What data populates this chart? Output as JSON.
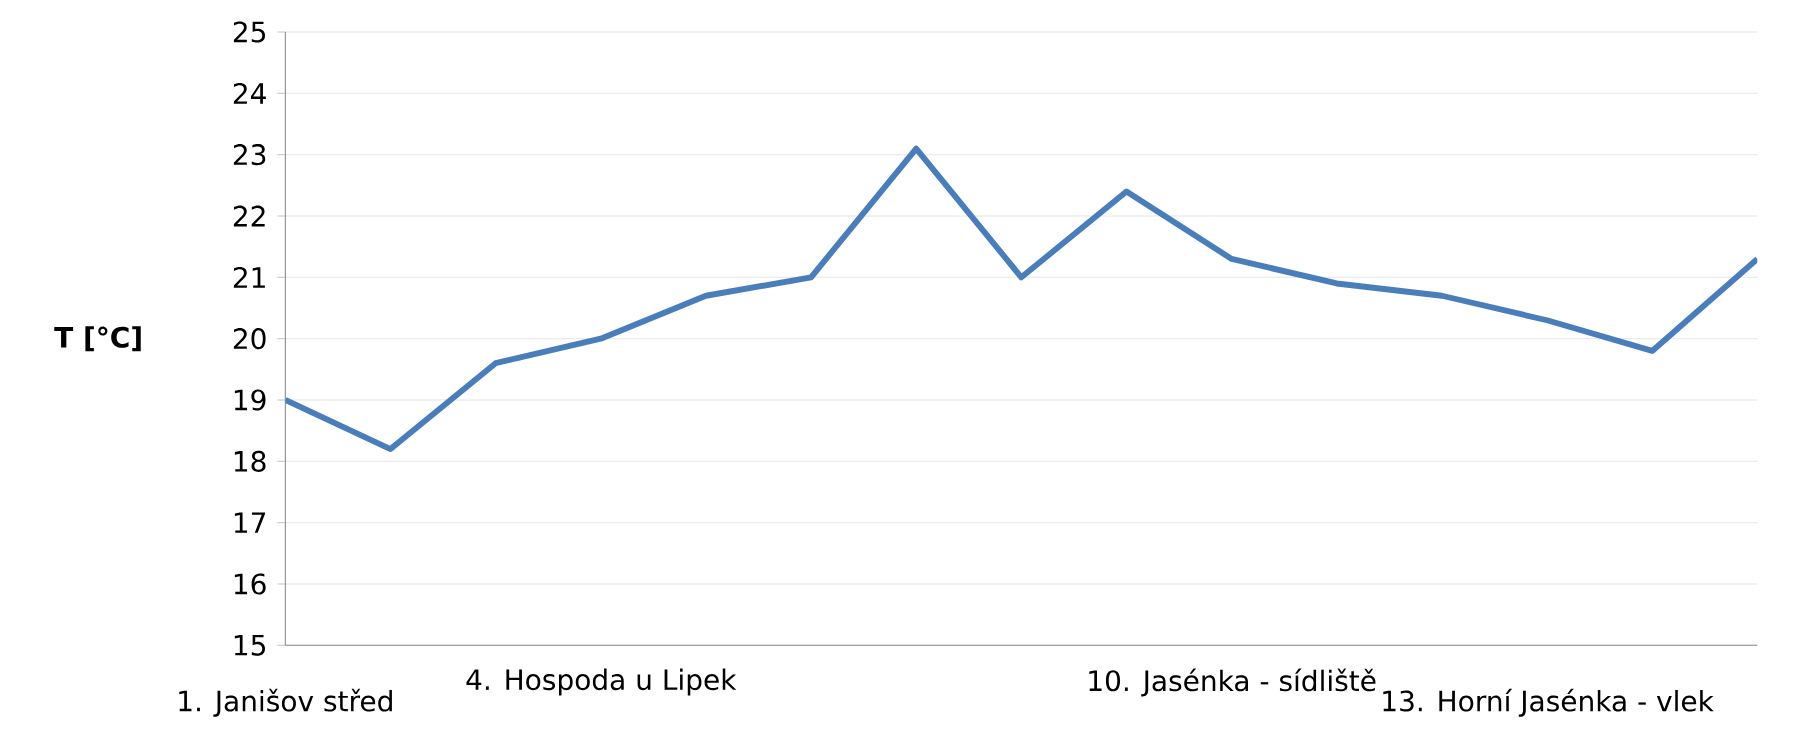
{
  "chart_data": {
    "type": "line",
    "ylabel": "T [°C]",
    "categories": [
      "1. Janišov střed",
      null,
      null,
      "4. Hospoda u Lipek",
      null,
      null,
      null,
      null,
      null,
      "10. Jasénka - sídliště",
      null,
      null,
      "13. Horní Jasénka - vlek",
      null,
      null
    ],
    "series": [
      {
        "color": "#4a7ebb",
        "values": [
          19.0,
          18.2,
          19.6,
          20.0,
          20.7,
          21.0,
          23.1,
          21.0,
          22.4,
          21.3,
          20.9,
          20.7,
          20.3,
          19.8,
          21.3
        ]
      }
    ],
    "ylim": [
      15,
      25
    ],
    "yticks": [
      15,
      16,
      17,
      18,
      19,
      20,
      21,
      22,
      23,
      24,
      25
    ],
    "grid": "y"
  }
}
